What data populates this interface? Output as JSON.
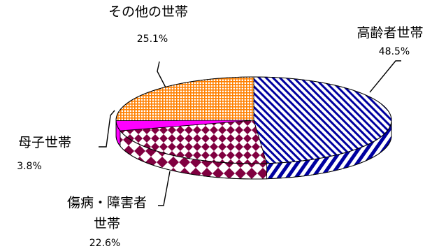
{
  "chart_data": {
    "type": "pie",
    "title": "",
    "style": "3d-oval-pie",
    "legend": "none",
    "slices": [
      {
        "label": "高齢者世帯",
        "value": 48.5,
        "value_label": "48.5%",
        "color": "#0000a0",
        "pattern": "diagonal-stripes"
      },
      {
        "label": "傷病・障害者\n世帯",
        "label_lines": [
          "傷病・障害者",
          "世帯"
        ],
        "value": 22.6,
        "value_label": "22.6%",
        "color": "#800040",
        "pattern": "diamonds"
      },
      {
        "label": "母子世帯",
        "value": 3.8,
        "value_label": "3.8%",
        "color": "#ff00ff",
        "pattern": "solid"
      },
      {
        "label": "その他の世帯",
        "value": 25.1,
        "value_label": "25.1%",
        "color": "#ff8000",
        "pattern": "grid"
      }
    ]
  }
}
